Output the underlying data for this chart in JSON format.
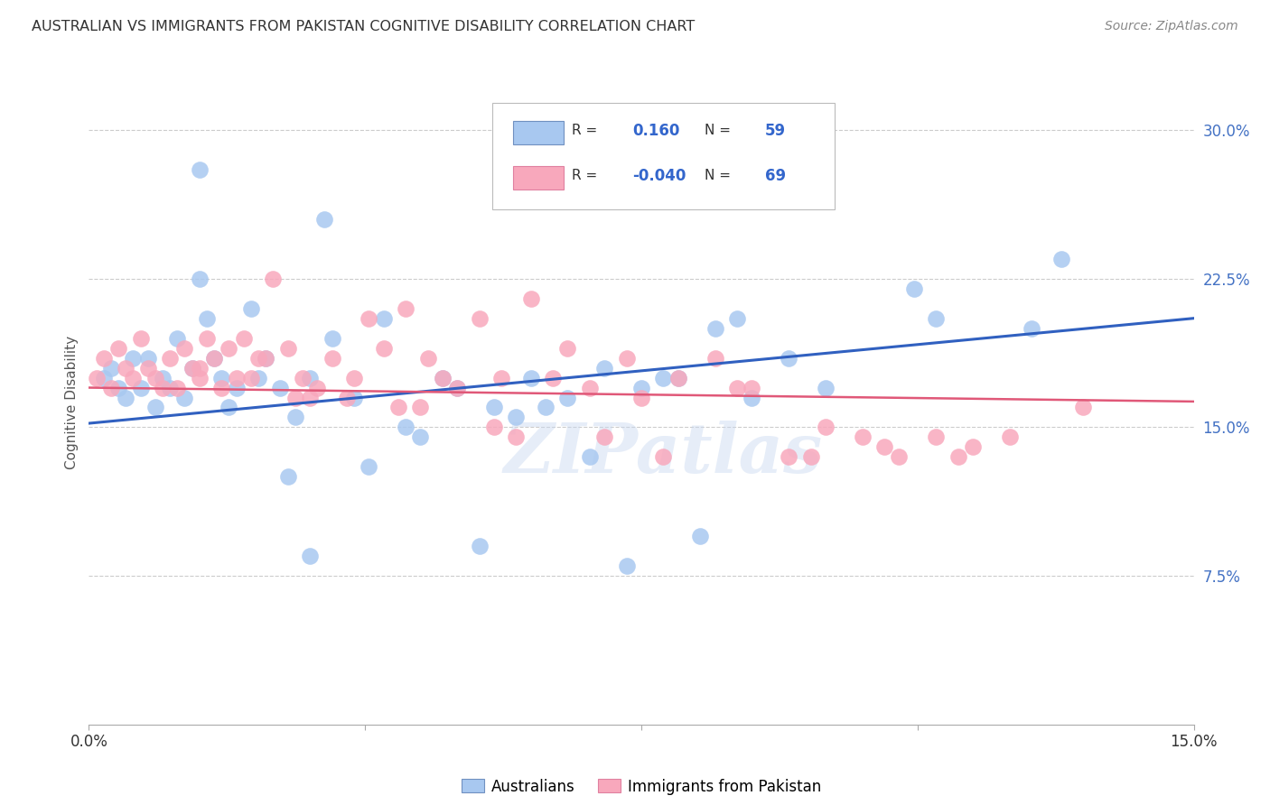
{
  "title": "AUSTRALIAN VS IMMIGRANTS FROM PAKISTAN COGNITIVE DISABILITY CORRELATION CHART",
  "source": "Source: ZipAtlas.com",
  "ylabel": "Cognitive Disability",
  "right_yticks": [
    7.5,
    15.0,
    22.5,
    30.0
  ],
  "right_yticklabels": [
    "7.5%",
    "15.0%",
    "22.5%",
    "30.0%"
  ],
  "xmin": 0.0,
  "xmax": 15.0,
  "ymin": 0.0,
  "ymax": 32.5,
  "legend_r_blue": "0.160",
  "legend_n_blue": "59",
  "legend_r_pink": "-0.040",
  "legend_n_pink": "69",
  "blue_color": "#A8C8F0",
  "pink_color": "#F8A8BC",
  "line_blue_color": "#3060C0",
  "line_pink_color": "#E05878",
  "watermark": "ZIPatlas",
  "blue_scatter_x": [
    0.2,
    0.3,
    0.4,
    0.5,
    0.6,
    0.7,
    0.8,
    0.9,
    1.0,
    1.1,
    1.2,
    1.3,
    1.4,
    1.5,
    1.6,
    1.7,
    1.8,
    1.9,
    2.0,
    2.2,
    2.4,
    2.6,
    2.8,
    3.0,
    3.3,
    3.6,
    4.0,
    4.5,
    5.0,
    5.5,
    6.0,
    6.5,
    7.0,
    7.5,
    8.0,
    8.5,
    9.0,
    9.5,
    10.0,
    11.5,
    13.2,
    4.8,
    3.2,
    2.3,
    1.5,
    5.8,
    6.2,
    7.8,
    8.8,
    11.2,
    3.8,
    4.3,
    2.7,
    3.0,
    5.3,
    6.8,
    8.3,
    7.3,
    12.8
  ],
  "blue_scatter_y": [
    17.5,
    18.0,
    17.0,
    16.5,
    18.5,
    17.0,
    18.5,
    16.0,
    17.5,
    17.0,
    19.5,
    16.5,
    18.0,
    22.5,
    20.5,
    18.5,
    17.5,
    16.0,
    17.0,
    21.0,
    18.5,
    17.0,
    15.5,
    17.5,
    19.5,
    16.5,
    20.5,
    14.5,
    17.0,
    16.0,
    17.5,
    16.5,
    18.0,
    17.0,
    17.5,
    20.0,
    16.5,
    18.5,
    17.0,
    20.5,
    23.5,
    17.5,
    25.5,
    17.5,
    28.0,
    15.5,
    16.0,
    17.5,
    20.5,
    22.0,
    13.0,
    15.0,
    12.5,
    8.5,
    9.0,
    13.5,
    9.5,
    8.0,
    20.0
  ],
  "pink_scatter_x": [
    0.1,
    0.2,
    0.3,
    0.4,
    0.5,
    0.6,
    0.7,
    0.8,
    0.9,
    1.0,
    1.1,
    1.2,
    1.3,
    1.4,
    1.5,
    1.6,
    1.7,
    1.8,
    1.9,
    2.0,
    2.1,
    2.2,
    2.3,
    2.5,
    2.7,
    2.9,
    3.1,
    3.3,
    3.5,
    3.8,
    4.0,
    4.3,
    4.6,
    5.0,
    5.3,
    5.6,
    6.0,
    6.5,
    7.0,
    7.5,
    8.0,
    8.5,
    9.0,
    9.5,
    10.0,
    10.5,
    11.0,
    11.5,
    12.0,
    12.5,
    3.0,
    4.8,
    5.8,
    6.3,
    7.8,
    8.8,
    9.8,
    2.8,
    1.5,
    4.5,
    6.8,
    7.3,
    5.5,
    4.2,
    3.6,
    2.4,
    13.5,
    10.8,
    11.8
  ],
  "pink_scatter_y": [
    17.5,
    18.5,
    17.0,
    19.0,
    18.0,
    17.5,
    19.5,
    18.0,
    17.5,
    17.0,
    18.5,
    17.0,
    19.0,
    18.0,
    17.5,
    19.5,
    18.5,
    17.0,
    19.0,
    17.5,
    19.5,
    17.5,
    18.5,
    22.5,
    19.0,
    17.5,
    17.0,
    18.5,
    16.5,
    20.5,
    19.0,
    21.0,
    18.5,
    17.0,
    20.5,
    17.5,
    21.5,
    19.0,
    14.5,
    16.5,
    17.5,
    18.5,
    17.0,
    13.5,
    15.0,
    14.5,
    13.5,
    14.5,
    14.0,
    14.5,
    16.5,
    17.5,
    14.5,
    17.5,
    13.5,
    17.0,
    13.5,
    16.5,
    18.0,
    16.0,
    17.0,
    18.5,
    15.0,
    16.0,
    17.5,
    18.5,
    16.0,
    14.0,
    13.5
  ]
}
